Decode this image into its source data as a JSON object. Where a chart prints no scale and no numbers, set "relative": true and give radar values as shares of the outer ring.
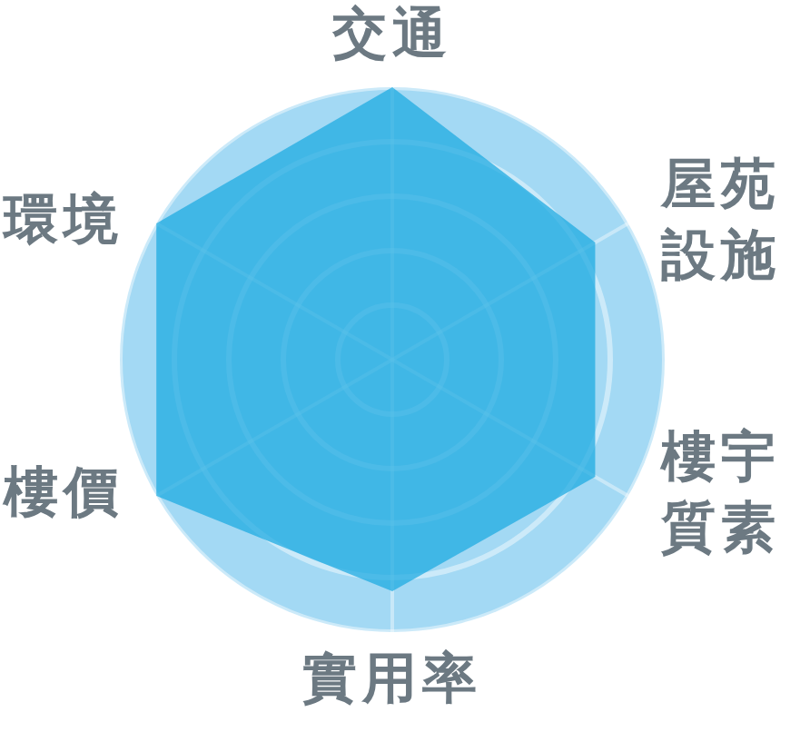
{
  "chart_data": {
    "type": "radar",
    "categories": [
      "交通",
      "屋苑設施",
      "樓宇質素",
      "實用率",
      "樓價",
      "環境"
    ],
    "series": [
      {
        "color": "#1ba9e1",
        "values": [
          1,
          0.86,
          0.86,
          0.85,
          1,
          1
        ]
      }
    ],
    "relative": true,
    "grid": true,
    "legend": false,
    "marker": "none"
  }
}
